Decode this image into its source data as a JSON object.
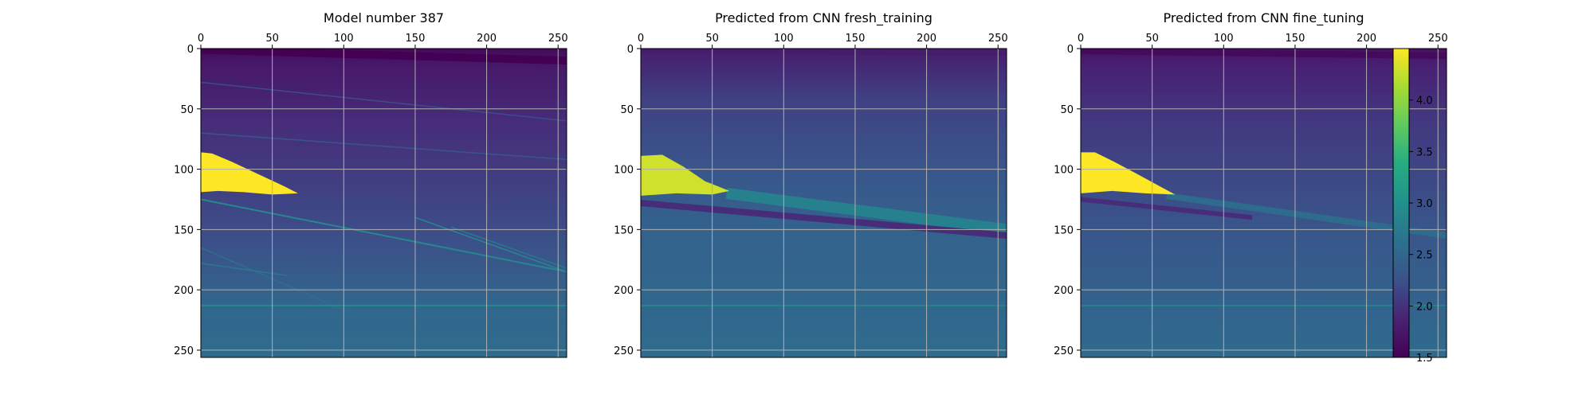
{
  "chart_data": {
    "type": "heatmap",
    "colormap": "viridis",
    "grid": true,
    "grid_color": "#b0b0b0",
    "colorbar": {
      "range": [
        1.5,
        4.5
      ],
      "ticks": [
        1.5,
        2.0,
        2.5,
        3.0,
        3.5,
        4.0
      ],
      "tick_labels": [
        "1.5",
        "2.0",
        "2.5",
        "3.0",
        "3.5",
        "4.0"
      ],
      "placement": "right"
    },
    "panels": [
      {
        "title": "Model number 387",
        "xlim": [
          0,
          256
        ],
        "ylim": [
          256,
          0
        ],
        "xticks": [
          0,
          50,
          100,
          150,
          200,
          250
        ],
        "xtick_labels": [
          "0",
          "50",
          "100",
          "150",
          "200",
          "250"
        ],
        "yticks": [
          0,
          50,
          100,
          150,
          200,
          250
        ],
        "ytick_labels": [
          "0",
          "50",
          "100",
          "150",
          "200",
          "250"
        ],
        "background_gradient": [
          [
            0,
            1.6
          ],
          [
            12,
            1.75
          ],
          [
            60,
            1.95
          ],
          [
            150,
            2.2
          ],
          [
            215,
            2.5
          ],
          [
            256,
            2.55
          ]
        ],
        "bands": [
          {
            "x0": 0,
            "y0": 1,
            "x1": 256,
            "y1": 10,
            "value": 1.5,
            "width": 10
          },
          {
            "x0": 0,
            "y0": 28,
            "x1": 256,
            "y1": 60,
            "value": 2.2,
            "width": 1.5
          },
          {
            "x0": 0,
            "y0": 70,
            "x1": 256,
            "y1": 92,
            "value": 2.3,
            "width": 1.5
          },
          {
            "x0": 0,
            "y0": 125,
            "x1": 256,
            "y1": 185,
            "value": 2.9,
            "width": 2
          },
          {
            "x0": 0,
            "y0": 165,
            "x1": 110,
            "y1": 222,
            "value": 2.6,
            "width": 1.5
          },
          {
            "x0": 0,
            "y0": 178,
            "x1": 60,
            "y1": 188,
            "value": 2.7,
            "width": 1.5
          },
          {
            "x0": 150,
            "y0": 140,
            "x1": 256,
            "y1": 185,
            "value": 2.9,
            "width": 1.5
          },
          {
            "x0": 175,
            "y0": 148,
            "x1": 256,
            "y1": 182,
            "value": 2.7,
            "width": 1.5
          },
          {
            "x0": 0,
            "y0": 213,
            "x1": 256,
            "y1": 213,
            "value": 2.9,
            "width": 2
          }
        ],
        "bodies": [
          {
            "points": [
              [
                0,
                86
              ],
              [
                8,
                87
              ],
              [
                22,
                94
              ],
              [
                40,
                104
              ],
              [
                58,
                114
              ],
              [
                68,
                120
              ],
              [
                50,
                121
              ],
              [
                30,
                119
              ],
              [
                12,
                118
              ],
              [
                0,
                119
              ]
            ],
            "value": 4.5
          }
        ]
      },
      {
        "title": "Predicted from CNN fresh_training",
        "xlim": [
          0,
          256
        ],
        "ylim": [
          256,
          0
        ],
        "xticks": [
          0,
          50,
          100,
          150,
          200,
          250
        ],
        "xtick_labels": [
          "0",
          "50",
          "100",
          "150",
          "200",
          "250"
        ],
        "yticks": [
          0,
          50,
          100,
          150,
          200,
          250
        ],
        "ytick_labels": [
          "0",
          "50",
          "100",
          "150",
          "200",
          "250"
        ],
        "background_gradient": [
          [
            0,
            1.8
          ],
          [
            40,
            2.1
          ],
          [
            100,
            2.3
          ],
          [
            150,
            2.45
          ],
          [
            205,
            2.5
          ],
          [
            256,
            2.55
          ]
        ],
        "bands": [
          {
            "x0": 0,
            "y0": 2,
            "x1": 256,
            "y1": 4,
            "value": 1.8,
            "width": 6
          },
          {
            "x0": 60,
            "y0": 120,
            "x1": 256,
            "y1": 150,
            "value": 2.8,
            "width": 14
          },
          {
            "x0": 0,
            "y0": 128,
            "x1": 256,
            "y1": 155,
            "value": 1.95,
            "width": 8
          },
          {
            "x0": 0,
            "y0": 213,
            "x1": 256,
            "y1": 213,
            "value": 2.85,
            "width": 2
          }
        ],
        "bodies": [
          {
            "points": [
              [
                0,
                89
              ],
              [
                15,
                88
              ],
              [
                30,
                98
              ],
              [
                45,
                110
              ],
              [
                62,
                118
              ],
              [
                50,
                121
              ],
              [
                25,
                120
              ],
              [
                0,
                122
              ]
            ],
            "value": 4.3
          }
        ]
      },
      {
        "title": "Predicted from CNN fine_tuning",
        "xlim": [
          0,
          256
        ],
        "ylim": [
          256,
          0
        ],
        "xticks": [
          0,
          50,
          100,
          150,
          200,
          250
        ],
        "xtick_labels": [
          "0",
          "50",
          "100",
          "150",
          "200",
          "250"
        ],
        "yticks": [
          0,
          50,
          100,
          150,
          200,
          250
        ],
        "ytick_labels": [
          "0",
          "50",
          "100",
          "150",
          "200",
          "250"
        ],
        "background_gradient": [
          [
            0,
            1.7
          ],
          [
            15,
            1.85
          ],
          [
            60,
            2.05
          ],
          [
            150,
            2.3
          ],
          [
            210,
            2.45
          ],
          [
            256,
            2.55
          ]
        ],
        "bands": [
          {
            "x0": 0,
            "y0": 2,
            "x1": 256,
            "y1": 6,
            "value": 1.6,
            "width": 8
          },
          {
            "x0": 60,
            "y0": 122,
            "x1": 256,
            "y1": 155,
            "value": 2.55,
            "width": 8
          },
          {
            "x0": 0,
            "y0": 125,
            "x1": 120,
            "y1": 140,
            "value": 1.95,
            "width": 6
          },
          {
            "x0": 0,
            "y0": 213,
            "x1": 256,
            "y1": 213,
            "value": 2.8,
            "width": 2
          }
        ],
        "bodies": [
          {
            "points": [
              [
                0,
                86
              ],
              [
                10,
                86
              ],
              [
                22,
                93
              ],
              [
                38,
                103
              ],
              [
                55,
                114
              ],
              [
                66,
                121
              ],
              [
                45,
                120
              ],
              [
                22,
                118
              ],
              [
                0,
                120
              ]
            ],
            "value": 4.5
          }
        ]
      }
    ]
  }
}
